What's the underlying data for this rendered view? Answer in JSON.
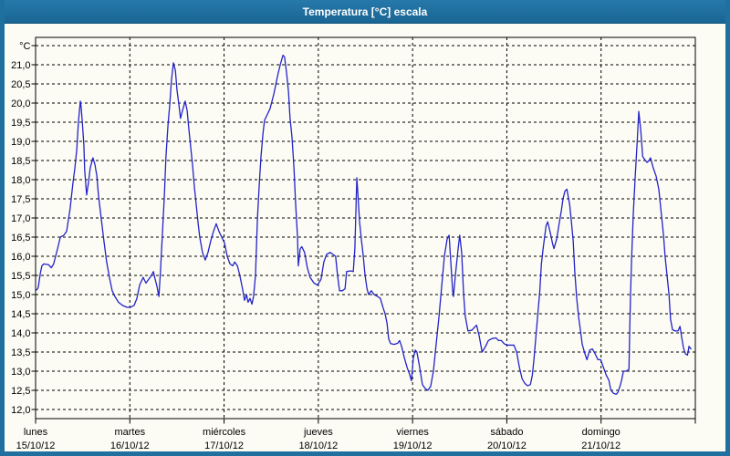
{
  "window": {
    "title": "Temperatura [°C] escala"
  },
  "colors": {
    "titlebar": "#1e6e9e",
    "frame": "#1f6f9f",
    "background": "#fcfcf4",
    "grid": "#000000",
    "line": "#2323c8",
    "text": "#000000"
  },
  "chart_data": {
    "type": "line",
    "title": "Temperatura [°C] escala",
    "unit_label": "°C",
    "xlabel": "",
    "ylabel": "°C",
    "ylim": [
      11.75,
      21.75
    ],
    "y_gridline_step": 0.5,
    "y_gridline_max": 21.5,
    "grid": "on",
    "legend": "none",
    "y_ticks": [
      {
        "label": "21,0",
        "value": 21.0
      },
      {
        "label": "20,5",
        "value": 20.5
      },
      {
        "label": "20,0",
        "value": 20.0
      },
      {
        "label": "19,5",
        "value": 19.5
      },
      {
        "label": "19,0",
        "value": 19.0
      },
      {
        "label": "18,5",
        "value": 18.5
      },
      {
        "label": "18,0",
        "value": 18.0
      },
      {
        "label": "17,5",
        "value": 17.5
      },
      {
        "label": "17,0",
        "value": 17.0
      },
      {
        "label": "16,5",
        "value": 16.5
      },
      {
        "label": "16,0",
        "value": 16.0
      },
      {
        "label": "15,5",
        "value": 15.5
      },
      {
        "label": "15,0",
        "value": 15.0
      },
      {
        "label": "14,5",
        "value": 14.5
      },
      {
        "label": "14,0",
        "value": 14.0
      },
      {
        "label": "13,5",
        "value": 13.5
      },
      {
        "label": "13,0",
        "value": 13.0
      },
      {
        "label": "12,5",
        "value": 12.5
      },
      {
        "label": "12,0",
        "value": 12.0
      }
    ],
    "x_days": [
      {
        "name": "lunes",
        "date": "15/10/12"
      },
      {
        "name": "martes",
        "date": "16/10/12"
      },
      {
        "name": "miércoles",
        "date": "17/10/12"
      },
      {
        "name": "jueves",
        "date": "18/10/12"
      },
      {
        "name": "viernes",
        "date": "19/10/12"
      },
      {
        "name": "sábado",
        "date": "20/10/12"
      },
      {
        "name": "domingo",
        "date": "21/10/12"
      }
    ],
    "x_unit": "hours_since_2012-10-15_00:00",
    "series": [
      {
        "name": "Temperatura",
        "color": "#2323c8",
        "points": [
          [
            0,
            15.1
          ],
          [
            0.5,
            15.15
          ],
          [
            0.7,
            15.2
          ],
          [
            1.2,
            15.55
          ],
          [
            1.6,
            15.75
          ],
          [
            2.1,
            15.8
          ],
          [
            3.3,
            15.78
          ],
          [
            4,
            15.7
          ],
          [
            4.6,
            15.8
          ],
          [
            5.6,
            16.2
          ],
          [
            6.3,
            16.5
          ],
          [
            7.2,
            16.55
          ],
          [
            7.9,
            16.65
          ],
          [
            8.8,
            17.25
          ],
          [
            9.5,
            17.9
          ],
          [
            10,
            18.3
          ],
          [
            10.5,
            18.8
          ],
          [
            10.9,
            19.5
          ],
          [
            11.4,
            20.05
          ],
          [
            11.6,
            19.9
          ],
          [
            11.9,
            19.5
          ],
          [
            12.3,
            18.9
          ],
          [
            12.5,
            18.25
          ],
          [
            13,
            17.6
          ],
          [
            13.5,
            17.95
          ],
          [
            13.9,
            18.3
          ],
          [
            14.6,
            18.57
          ],
          [
            15.1,
            18.4
          ],
          [
            15.6,
            18.1
          ],
          [
            16,
            17.6
          ],
          [
            16.7,
            17
          ],
          [
            17.4,
            16.4
          ],
          [
            18.1,
            15.85
          ],
          [
            18.8,
            15.45
          ],
          [
            19.5,
            15.1
          ],
          [
            20.2,
            14.95
          ],
          [
            21.1,
            14.8
          ],
          [
            22.1,
            14.72
          ],
          [
            23.2,
            14.67
          ],
          [
            24.2,
            14.67
          ],
          [
            25.1,
            14.72
          ],
          [
            25.8,
            14.9
          ],
          [
            26.5,
            15.25
          ],
          [
            27.4,
            15.45
          ],
          [
            28.1,
            15.3
          ],
          [
            28.8,
            15.4
          ],
          [
            29.5,
            15.5
          ],
          [
            30,
            15.6
          ],
          [
            30.4,
            15.42
          ],
          [
            30.9,
            15.22
          ],
          [
            31.4,
            14.95
          ],
          [
            31.8,
            15.6
          ],
          [
            32.3,
            16.6
          ],
          [
            32.8,
            17.6
          ],
          [
            33.2,
            18.6
          ],
          [
            33.7,
            19.4
          ],
          [
            34.2,
            20
          ],
          [
            34.6,
            20.6
          ],
          [
            35.1,
            21.05
          ],
          [
            35.6,
            20.85
          ],
          [
            36,
            20.35
          ],
          [
            36.5,
            19.95
          ],
          [
            36.9,
            19.6
          ],
          [
            37.4,
            19.8
          ],
          [
            38.1,
            20.05
          ],
          [
            38.6,
            19.8
          ],
          [
            39,
            19.35
          ],
          [
            39.5,
            18.85
          ],
          [
            40,
            18.35
          ],
          [
            40.4,
            17.85
          ],
          [
            40.9,
            17.35
          ],
          [
            41.4,
            16.85
          ],
          [
            41.8,
            16.5
          ],
          [
            42.5,
            16.1
          ],
          [
            43.2,
            15.9
          ],
          [
            43.9,
            16.1
          ],
          [
            44.6,
            16.4
          ],
          [
            45.3,
            16.65
          ],
          [
            46,
            16.85
          ],
          [
            46.7,
            16.65
          ],
          [
            47.4,
            16.5
          ],
          [
            48.1,
            16.35
          ],
          [
            48.8,
            16
          ],
          [
            49.5,
            15.8
          ],
          [
            50.2,
            15.75
          ],
          [
            50.7,
            15.85
          ],
          [
            51.4,
            15.75
          ],
          [
            52,
            15.5
          ],
          [
            52.7,
            15.15
          ],
          [
            53.2,
            14.85
          ],
          [
            53.7,
            15
          ],
          [
            54.1,
            14.8
          ],
          [
            54.6,
            14.9
          ],
          [
            55.1,
            14.75
          ],
          [
            55.5,
            14.95
          ],
          [
            56,
            15.5
          ],
          [
            56.5,
            17
          ],
          [
            57,
            17.95
          ],
          [
            57.4,
            18.6
          ],
          [
            57.9,
            19.2
          ],
          [
            58.3,
            19.55
          ],
          [
            59,
            19.7
          ],
          [
            59.7,
            19.85
          ],
          [
            60.7,
            20.25
          ],
          [
            61.6,
            20.7
          ],
          [
            62.3,
            21
          ],
          [
            63,
            21.25
          ],
          [
            63.4,
            21.2
          ],
          [
            63.9,
            20.8
          ],
          [
            64.4,
            20.3
          ],
          [
            64.8,
            19.6
          ],
          [
            65.3,
            19.1
          ],
          [
            65.8,
            18.3
          ],
          [
            66.2,
            17.4
          ],
          [
            66.7,
            16.5
          ],
          [
            66.9,
            15.75
          ],
          [
            67.4,
            16.2
          ],
          [
            67.8,
            16.25
          ],
          [
            68.5,
            16.1
          ],
          [
            69.2,
            15.7
          ],
          [
            69.9,
            15.45
          ],
          [
            70.9,
            15.3
          ],
          [
            71.8,
            15.25
          ],
          [
            72.7,
            15.4
          ],
          [
            73.4,
            15.85
          ],
          [
            74.1,
            16.05
          ],
          [
            75,
            16.1
          ],
          [
            75.7,
            16.05
          ],
          [
            76.4,
            16
          ],
          [
            76.9,
            15.5
          ],
          [
            77.4,
            15.1
          ],
          [
            78.1,
            15.1
          ],
          [
            78.8,
            15.15
          ],
          [
            79.2,
            15.6
          ],
          [
            80.2,
            15.62
          ],
          [
            80.9,
            15.6
          ],
          [
            81.3,
            16.2
          ],
          [
            81.6,
            17.3
          ],
          [
            81.8,
            18.05
          ],
          [
            82,
            17.75
          ],
          [
            82.5,
            16.9
          ],
          [
            83,
            16.4
          ],
          [
            83.4,
            16.05
          ],
          [
            83.9,
            15.5
          ],
          [
            84.4,
            15.15
          ],
          [
            84.8,
            15
          ],
          [
            85.5,
            15.1
          ],
          [
            86.2,
            15
          ],
          [
            87.1,
            14.95
          ],
          [
            87.8,
            14.9
          ],
          [
            88.5,
            14.65
          ],
          [
            89,
            14.5
          ],
          [
            89.5,
            14.25
          ],
          [
            89.9,
            13.85
          ],
          [
            90.4,
            13.72
          ],
          [
            91.3,
            13.7
          ],
          [
            92.2,
            13.73
          ],
          [
            92.7,
            13.8
          ],
          [
            93.2,
            13.65
          ],
          [
            93.9,
            13.35
          ],
          [
            94.6,
            13.1
          ],
          [
            95.3,
            12.9
          ],
          [
            95.7,
            12.75
          ],
          [
            96.2,
            13.35
          ],
          [
            96.7,
            13.55
          ],
          [
            97.1,
            13.5
          ],
          [
            97.8,
            13.1
          ],
          [
            98.5,
            12.65
          ],
          [
            99.2,
            12.55
          ],
          [
            99.9,
            12.5
          ],
          [
            100.6,
            12.6
          ],
          [
            101.3,
            13
          ],
          [
            102,
            13.7
          ],
          [
            102.7,
            14.4
          ],
          [
            103.4,
            15.2
          ],
          [
            104.1,
            16
          ],
          [
            104.8,
            16.45
          ],
          [
            105.3,
            16.55
          ],
          [
            105.7,
            15.9
          ],
          [
            106.2,
            15.1
          ],
          [
            106.4,
            14.95
          ],
          [
            106.9,
            15.5
          ],
          [
            107.6,
            16.2
          ],
          [
            108,
            16.55
          ],
          [
            108.5,
            16.1
          ],
          [
            109,
            15
          ],
          [
            109.4,
            14.45
          ],
          [
            110.1,
            14.05
          ],
          [
            111.1,
            14.07
          ],
          [
            111.8,
            14.15
          ],
          [
            112.3,
            14.2
          ],
          [
            113,
            13.9
          ],
          [
            113.7,
            13.5
          ],
          [
            114.6,
            13.65
          ],
          [
            115.3,
            13.8
          ],
          [
            116.2,
            13.85
          ],
          [
            117.2,
            13.87
          ],
          [
            117.9,
            13.8
          ],
          [
            118.6,
            13.8
          ],
          [
            119.3,
            13.72
          ],
          [
            120,
            13.68
          ],
          [
            120.9,
            13.68
          ],
          [
            121.8,
            13.68
          ],
          [
            122.5,
            13.5
          ],
          [
            123.2,
            13.1
          ],
          [
            123.9,
            12.8
          ],
          [
            124.6,
            12.68
          ],
          [
            125.3,
            12.62
          ],
          [
            126,
            12.65
          ],
          [
            126.5,
            12.9
          ],
          [
            126.9,
            13.3
          ],
          [
            127.4,
            13.9
          ],
          [
            127.9,
            14.5
          ],
          [
            128.4,
            15.1
          ],
          [
            128.8,
            15.8
          ],
          [
            129.3,
            16.25
          ],
          [
            130,
            16.8
          ],
          [
            130.4,
            16.9
          ],
          [
            131.1,
            16.6
          ],
          [
            131.6,
            16.35
          ],
          [
            132,
            16.2
          ],
          [
            132.7,
            16.45
          ],
          [
            133.4,
            16.9
          ],
          [
            133.9,
            17.2
          ],
          [
            134.3,
            17.5
          ],
          [
            134.8,
            17.7
          ],
          [
            135.3,
            17.75
          ],
          [
            136,
            17.35
          ],
          [
            136.4,
            16.95
          ],
          [
            136.9,
            16.4
          ],
          [
            137.3,
            15.6
          ],
          [
            137.8,
            14.9
          ],
          [
            138.3,
            14.4
          ],
          [
            138.7,
            14.1
          ],
          [
            139.2,
            13.7
          ],
          [
            139.9,
            13.45
          ],
          [
            140.4,
            13.3
          ],
          [
            141.1,
            13.55
          ],
          [
            141.8,
            13.58
          ],
          [
            142.5,
            13.45
          ],
          [
            143.2,
            13.3
          ],
          [
            143.9,
            13.3
          ],
          [
            144.6,
            13.1
          ],
          [
            145.3,
            12.9
          ],
          [
            146,
            12.76
          ],
          [
            146.5,
            12.5
          ],
          [
            147.2,
            12.42
          ],
          [
            147.9,
            12.4
          ],
          [
            148.3,
            12.45
          ],
          [
            148.8,
            12.6
          ],
          [
            149.2,
            12.75
          ],
          [
            149.7,
            13
          ],
          [
            150.4,
            13
          ],
          [
            151.1,
            13.05
          ],
          [
            151.3,
            14.1
          ],
          [
            151.5,
            15
          ],
          [
            151.8,
            16
          ],
          [
            152.2,
            17.1
          ],
          [
            152.7,
            18.1
          ],
          [
            153.2,
            19
          ],
          [
            153.6,
            19.78
          ],
          [
            154.1,
            19.3
          ],
          [
            154.6,
            18.6
          ],
          [
            155.3,
            18.5
          ],
          [
            155.7,
            18.45
          ],
          [
            156.2,
            18.5
          ],
          [
            156.6,
            18.57
          ],
          [
            157.3,
            18.3
          ],
          [
            158,
            18.1
          ],
          [
            158.7,
            17.75
          ],
          [
            159.4,
            17.05
          ],
          [
            159.9,
            16.55
          ],
          [
            160.3,
            16
          ],
          [
            160.8,
            15.5
          ],
          [
            161.3,
            15
          ],
          [
            161.7,
            14.35
          ],
          [
            162.2,
            14.08
          ],
          [
            162.9,
            14.05
          ],
          [
            163.6,
            14.05
          ],
          [
            164.1,
            14.17
          ],
          [
            164.5,
            13.9
          ],
          [
            165,
            13.6
          ],
          [
            165.5,
            13.45
          ],
          [
            166,
            13.42
          ],
          [
            166.4,
            13.65
          ],
          [
            166.9,
            13.58
          ]
        ]
      }
    ]
  }
}
